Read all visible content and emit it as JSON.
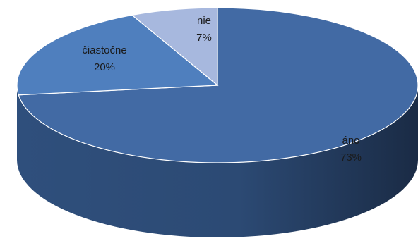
{
  "chart_data": {
    "type": "pie",
    "style": "3d",
    "slices": [
      {
        "name": "áno",
        "value": 73,
        "label": "73%",
        "color": "#426aa4"
      },
      {
        "name": "čiastočne",
        "value": 20,
        "label": "20%",
        "color": "#4f7fbe"
      },
      {
        "name": "nie",
        "value": 7,
        "label": "7%",
        "color": "#a7b8de"
      }
    ],
    "side_color": "#2c4a74",
    "side_dark": "#1a2b45",
    "legend": false
  }
}
